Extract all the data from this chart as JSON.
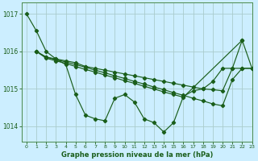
{
  "bg_color": "#cceeff",
  "grid_color": "#aacccc",
  "line_color": "#1a5e1a",
  "xlabel": "Graphe pression niveau de la mer (hPa)",
  "xlim": [
    -0.5,
    23
  ],
  "ylim": [
    1013.6,
    1017.3
  ],
  "yticks": [
    1014,
    1015,
    1016,
    1017
  ],
  "xtick_labels": [
    "0",
    "1",
    "2",
    "3",
    "4",
    "5",
    "6",
    "7",
    "8",
    "9",
    "10",
    "11",
    "12",
    "13",
    "14",
    "15",
    "16",
    "17",
    "18",
    "19",
    "20",
    "21",
    "22",
    "23"
  ],
  "series": [
    {
      "x": [
        0,
        1,
        2,
        3,
        4,
        5,
        6,
        7,
        8,
        9,
        10,
        11,
        12,
        13,
        14,
        15,
        16,
        17,
        18,
        19,
        20,
        21,
        22
      ],
      "y": [
        1017.0,
        1016.55,
        1016.0,
        1015.8,
        1015.65,
        1014.85,
        1014.3,
        1014.2,
        1014.15,
        1014.75,
        1014.85,
        1014.65,
        1014.2,
        1014.1,
        1013.85,
        1014.1,
        1014.8,
        1014.95,
        1015.0,
        1015.2,
        1015.55,
        1015.55,
        1016.3
      ]
    },
    {
      "x": [
        1,
        2,
        3,
        4,
        5,
        6,
        7,
        8,
        9,
        10,
        11,
        12,
        13,
        14,
        15,
        16,
        17,
        18,
        19,
        20,
        21,
        22,
        23
      ],
      "y": [
        1016.0,
        1015.85,
        1015.8,
        1015.75,
        1015.7,
        1015.6,
        1015.55,
        1015.5,
        1015.45,
        1015.4,
        1015.35,
        1015.3,
        1015.25,
        1015.2,
        1015.15,
        1015.1,
        1015.05,
        1015.0,
        1014.98,
        1014.95,
        1015.55,
        1015.55,
        1015.55
      ]
    },
    {
      "x": [
        1,
        2,
        3,
        4,
        5,
        6,
        7,
        8,
        9,
        10,
        11,
        12,
        13,
        14,
        15,
        16,
        17,
        18,
        19,
        20,
        21,
        22,
        23
      ],
      "y": [
        1016.0,
        1015.85,
        1015.78,
        1015.72,
        1015.65,
        1015.58,
        1015.5,
        1015.43,
        1015.35,
        1015.28,
        1015.2,
        1015.13,
        1015.05,
        1014.98,
        1014.9,
        1014.83,
        1014.75,
        1014.68,
        1014.6,
        1014.55,
        1015.25,
        1015.55,
        1015.55
      ]
    },
    {
      "x": [
        1,
        2,
        3,
        4,
        5,
        6,
        7,
        8,
        9,
        10,
        11,
        12,
        13,
        14,
        15,
        16,
        22,
        23
      ],
      "y": [
        1016.0,
        1015.82,
        1015.75,
        1015.68,
        1015.6,
        1015.52,
        1015.45,
        1015.37,
        1015.3,
        1015.22,
        1015.15,
        1015.07,
        1015.0,
        1014.92,
        1014.85,
        1014.78,
        1016.3,
        1015.55
      ]
    }
  ]
}
